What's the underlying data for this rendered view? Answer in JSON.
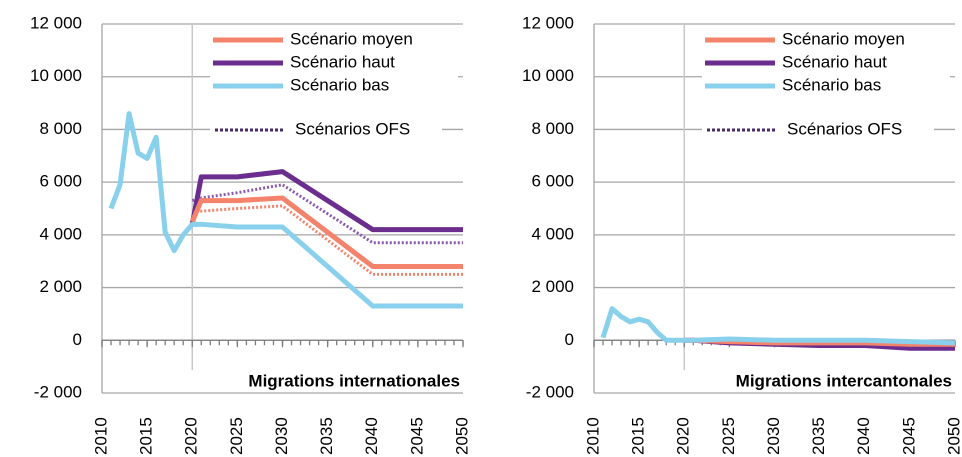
{
  "chart_data": [
    {
      "type": "line",
      "label": "Migrations internationales",
      "x": [
        2011,
        2012,
        2013,
        2014,
        2015,
        2016,
        2017,
        2018,
        2019,
        2020,
        2021,
        2025,
        2030,
        2035,
        2040,
        2045,
        2050
      ],
      "series": [
        {
          "name": "Scénario moyen",
          "color": "#f4836b",
          "values": [
            null,
            null,
            null,
            null,
            null,
            null,
            null,
            null,
            null,
            4500,
            5300,
            5300,
            5400,
            4100,
            2800,
            2800,
            2800
          ]
        },
        {
          "name": "Scénario haut",
          "color": "#6b2d8e",
          "values": [
            null,
            null,
            null,
            null,
            null,
            null,
            null,
            null,
            null,
            4400,
            6200,
            6200,
            6400,
            5300,
            4200,
            4200,
            4200
          ]
        },
        {
          "name": "Scénario bas",
          "color": "#89d0ec",
          "values": [
            5000,
            5900,
            8600,
            7100,
            6900,
            7700,
            4100,
            3400,
            4000,
            4400,
            4400,
            4300,
            4300,
            2800,
            1300,
            1300,
            1300
          ]
        }
      ],
      "ofs_label": "Scénarios OFS",
      "ofs_color": "#4a2a6a",
      "ofs_series": [
        {
          "color": "#8a5ab0",
          "values": [
            null,
            null,
            null,
            null,
            null,
            null,
            null,
            null,
            null,
            5300,
            5400,
            5600,
            5900,
            4800,
            3700,
            3700,
            3700
          ]
        },
        {
          "color": "#f4836b",
          "values": [
            null,
            null,
            null,
            null,
            null,
            null,
            null,
            null,
            null,
            4900,
            4900,
            5000,
            5100,
            3800,
            2500,
            2500,
            2500
          ]
        }
      ],
      "xlim": [
        2010,
        2050
      ],
      "xticks": [
        2010,
        2015,
        2020,
        2025,
        2030,
        2035,
        2040,
        2045,
        2050
      ],
      "ylim": [
        -2000,
        12000
      ],
      "yticks": [
        {
          "value": -2000,
          "label": "-2 000"
        },
        0,
        {
          "value": 2000,
          "label": "2 000"
        },
        {
          "value": 4000,
          "label": "4 000"
        },
        {
          "value": 6000,
          "label": "6 000"
        },
        {
          "value": 8000,
          "label": "8 000"
        },
        {
          "value": 10000,
          "label": "10 000"
        },
        {
          "value": 12000,
          "label": "12 000"
        }
      ],
      "divider_x": 2020,
      "grid": true
    },
    {
      "type": "line",
      "label": "Migrations intercantonales",
      "x": [
        2011,
        2012,
        2013,
        2014,
        2015,
        2016,
        2017,
        2018,
        2019,
        2020,
        2021,
        2025,
        2030,
        2035,
        2040,
        2045,
        2050
      ],
      "series": [
        {
          "name": "Scénario moyen",
          "color": "#f4836b",
          "values": [
            null,
            null,
            null,
            null,
            null,
            null,
            null,
            null,
            null,
            0,
            0,
            -50,
            -100,
            -100,
            -100,
            -150,
            -150
          ]
        },
        {
          "name": "Scénario haut",
          "color": "#6b2d8e",
          "values": [
            null,
            null,
            null,
            null,
            null,
            null,
            null,
            null,
            null,
            0,
            0,
            -100,
            -150,
            -200,
            -200,
            -300,
            -300
          ]
        },
        {
          "name": "Scénario bas",
          "color": "#89d0ec",
          "values": [
            100,
            1200,
            900,
            700,
            800,
            700,
            300,
            0,
            0,
            0,
            0,
            50,
            0,
            0,
            0,
            -50,
            -100
          ]
        }
      ],
      "ofs_label": "Scénarios OFS",
      "ofs_color": "#4a2a6a",
      "ofs_series": [
        {
          "color": "#8a5ab0",
          "values": [
            null,
            null,
            null,
            null,
            null,
            null,
            null,
            null,
            null,
            0,
            0,
            -50,
            -100,
            -100,
            -150,
            -150,
            -200
          ]
        }
      ],
      "xlim": [
        2010,
        2050
      ],
      "xticks": [
        2010,
        2015,
        2020,
        2025,
        2030,
        2035,
        2040,
        2045,
        2050
      ],
      "ylim": [
        -2000,
        12000
      ],
      "yticks": [
        {
          "value": -2000,
          "label": "-2 000"
        },
        0,
        {
          "value": 2000,
          "label": "2 000"
        },
        {
          "value": 4000,
          "label": "4 000"
        },
        {
          "value": 6000,
          "label": "6 000"
        },
        {
          "value": 8000,
          "label": "8 000"
        },
        {
          "value": 10000,
          "label": "10 000"
        },
        {
          "value": 12000,
          "label": "12 000"
        }
      ],
      "divider_x": 2020,
      "grid": true
    }
  ]
}
